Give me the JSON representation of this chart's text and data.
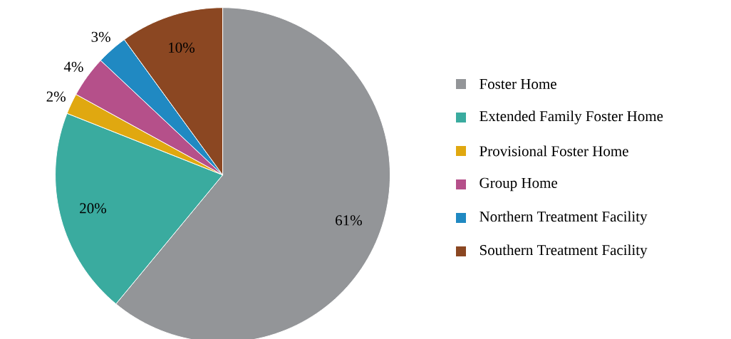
{
  "chart_data": {
    "type": "pie",
    "categories": [
      "Foster Home",
      "Extended Family Foster Home",
      "Provisional Foster Home",
      "Group Home",
      "Northern Treatment Facility",
      "Southern Treatment Facility"
    ],
    "values": [
      61,
      20,
      2,
      4,
      3,
      10
    ],
    "colors": [
      "#939598",
      "#3aab9f",
      "#e0a810",
      "#b5508a",
      "#2089c2",
      "#8b4722"
    ],
    "value_labels": [
      "61%",
      "20%",
      "2%",
      "4%",
      "3%",
      "10%"
    ],
    "legend": "right"
  }
}
